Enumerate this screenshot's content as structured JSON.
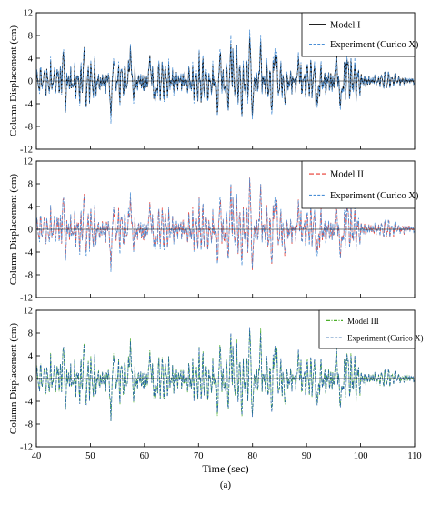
{
  "figure": {
    "caption": "(a)",
    "xlabel": "Time (sec)"
  },
  "chart_data": [
    {
      "type": "line",
      "title": "",
      "xlabel": "",
      "ylabel": "Column Displacement (cm)",
      "xlim": [
        40,
        110
      ],
      "ylim": [
        -12,
        12
      ],
      "yticks": [
        12,
        8,
        4,
        0,
        -4,
        -8,
        -12
      ],
      "xticks": [
        40,
        50,
        60,
        70,
        80,
        90,
        100,
        110
      ],
      "grid": false,
      "legend_position": "top-right",
      "series": [
        {
          "name": "Model I",
          "color": "#000000",
          "style": "solid",
          "scale": 0.9,
          "jitter": 0.12
        },
        {
          "name": "Experiment (Curico X)",
          "color": "#4a8fd6",
          "style": "dashed",
          "scale": 1.0,
          "jitter": 0.0
        }
      ]
    },
    {
      "type": "line",
      "title": "",
      "xlabel": "",
      "ylabel": "Column Displacement (cm)",
      "xlim": [
        40,
        110
      ],
      "ylim": [
        -12,
        12
      ],
      "yticks": [
        12,
        8,
        4,
        0,
        -4,
        -8,
        -12
      ],
      "xticks": [
        40,
        50,
        60,
        70,
        80,
        90,
        100,
        110
      ],
      "grid": false,
      "legend_position": "top-right",
      "series": [
        {
          "name": "Model II",
          "color": "#e8382f",
          "style": "longdash",
          "scale": 0.95,
          "jitter": 0.18
        },
        {
          "name": "Experiment (Curico X)",
          "color": "#4a8fd6",
          "style": "dashed",
          "scale": 1.0,
          "jitter": 0.0
        }
      ]
    },
    {
      "type": "line",
      "title": "",
      "xlabel": "Time (sec)",
      "ylabel": "Column Displacement (cm)",
      "xlim": [
        40,
        110
      ],
      "ylim": [
        -12,
        12
      ],
      "yticks": [
        12,
        8,
        4,
        0,
        -4,
        -8,
        -12
      ],
      "xticks": [
        40,
        50,
        60,
        70,
        80,
        90,
        100,
        110
      ],
      "grid": false,
      "legend_position": "top-right",
      "series": [
        {
          "name": "Model III",
          "color": "#4caf2a",
          "style": "dashdot",
          "scale": 1.0,
          "jitter": 0.1
        },
        {
          "name": "Experiment (Curico X)",
          "color": "#1f5fa8",
          "style": "dashed",
          "scale": 1.0,
          "jitter": 0.0
        }
      ]
    }
  ],
  "experiment_peaks": [
    [
      45.0,
      7.0
    ],
    [
      45.4,
      -5.5
    ],
    [
      48.8,
      6.5
    ],
    [
      49.2,
      -4.8
    ],
    [
      53.8,
      -7.5
    ],
    [
      54.3,
      4.6
    ],
    [
      57.4,
      6.5
    ],
    [
      58.0,
      -4.0
    ],
    [
      61.0,
      4.5
    ],
    [
      62.0,
      -5.0
    ],
    [
      73.5,
      -6.5
    ],
    [
      74.0,
      7.0
    ],
    [
      75.5,
      -5.5
    ],
    [
      76.0,
      8.0
    ],
    [
      78.0,
      -6.5
    ],
    [
      79.5,
      9.8
    ],
    [
      80.0,
      -8.0
    ],
    [
      81.5,
      8.5
    ],
    [
      83.5,
      -6.0
    ],
    [
      84.2,
      7.0
    ],
    [
      86.0,
      -5.0
    ],
    [
      88.5,
      5.5
    ],
    [
      92.0,
      -6.0
    ],
    [
      95.5,
      6.5
    ],
    [
      96.3,
      -5.5
    ],
    [
      97.5,
      4.5
    ]
  ]
}
